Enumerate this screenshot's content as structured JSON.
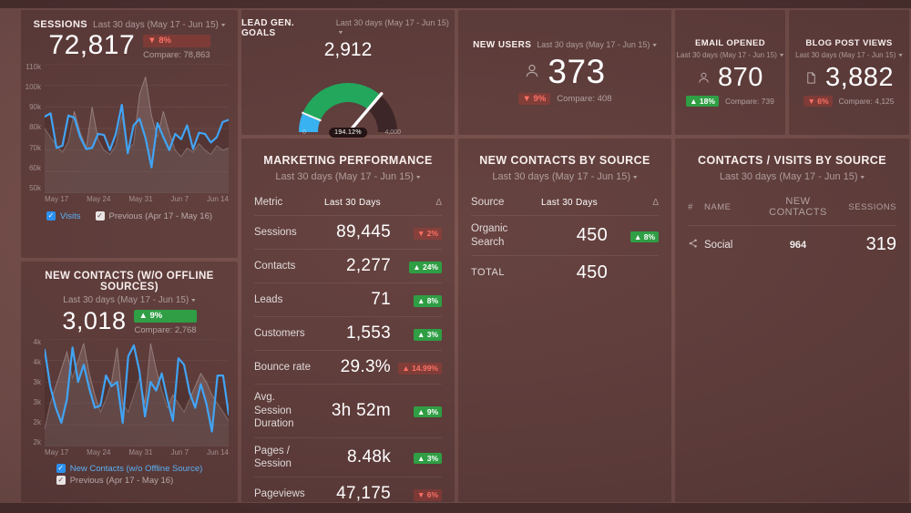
{
  "colors": {
    "accent_blue": "#41a4f5",
    "green": "#2f9e44",
    "red": "#ff7166",
    "gauge_blue": "#38b2f0",
    "gauge_green": "#22a75d",
    "gauge_dark": "#3c2628"
  },
  "panels": {
    "sessions": {
      "title": "SESSIONS",
      "subtitle": "Last 30 days (May 17 - Jun 15)",
      "value": "72,817",
      "delta_text": "▼ 8%",
      "tone": "red",
      "compare": "Compare: 78,863",
      "legend": [
        {
          "label": "Visits"
        },
        {
          "label": "Previous (Apr 17 - May 16)"
        }
      ],
      "chart_data": {
        "type": "line",
        "ymin": 50000,
        "ymax": 110000,
        "yticks": [
          "110k",
          "100k",
          "90k",
          "80k",
          "70k",
          "60k",
          "50k"
        ],
        "xticks": [
          "May 17",
          "May 24",
          "May 31",
          "Jun 7",
          "Jun 14"
        ],
        "series": [
          {
            "name": "Previous (Apr 17 - May 16)",
            "color": "#b9b3b3",
            "area": true,
            "values": [
              80000,
              76000,
              72000,
              69000,
              74000,
              88000,
              78000,
              71000,
              90000,
              75000,
              70000,
              68000,
              72000,
              86000,
              70000,
              73000,
              96000,
              104000,
              86000,
              76000,
              88000,
              78000,
              70000,
              67000,
              71000,
              69000,
              73000,
              70000,
              68000,
              72000,
              70000,
              71000
            ]
          },
          {
            "name": "Visits",
            "color": "#41a4f5",
            "values": [
              85500,
              87000,
              71000,
              72000,
              86000,
              85000,
              76000,
              70500,
              71000,
              77500,
              77000,
              70000,
              77500,
              91000,
              68500,
              81500,
              84500,
              75500,
              62000,
              82500,
              76000,
              70000,
              77500,
              75000,
              81500,
              70500,
              78000,
              77500,
              73500,
              76000,
              83000,
              84000
            ]
          }
        ]
      }
    },
    "lead_gen": {
      "title": "LEAD GEN. GOALS",
      "subtitle": "Last 30 days (May 17 - Jun 15)",
      "value": "2,912",
      "chart_data": {
        "type": "gauge",
        "value": 2912,
        "percent_label": "194.12%",
        "min_label": "0",
        "max_label": "4,000",
        "needle_frac": 0.728,
        "segments": [
          {
            "color": "#38b2f0",
            "from": 0,
            "to": 0.128
          },
          {
            "color": "#22a75d",
            "from": 0.128,
            "to": 0.728
          },
          {
            "color": "#3c2628",
            "from": 0.728,
            "to": 1
          }
        ]
      }
    },
    "new_users": {
      "title": "NEW USERS",
      "subtitle": "Last 30 days (May 17 - Jun 15)",
      "icon": "person",
      "value": "373",
      "delta_text": "▼ 9%",
      "tone": "red",
      "compare": "Compare: 408"
    },
    "email_opened": {
      "title": "EMAIL OPENED",
      "subtitle": "Last 30 days (May 17 - Jun 15)",
      "icon": "person",
      "value": "870",
      "delta_text": "▲ 18%",
      "tone": "green",
      "compare": "Compare: 739"
    },
    "blog_views": {
      "title": "BLOG POST VIEWS",
      "subtitle": "Last 30 days (May 17 - Jun 15)",
      "icon": "document",
      "value": "3,882",
      "delta_text": "▼ 6%",
      "tone": "red",
      "compare": "Compare: 4,125"
    },
    "marketing": {
      "title": "MARKETING PERFORMANCE",
      "subtitle": "Last 30 days (May 17 - Jun 15)",
      "columns": [
        "Metric",
        "Last 30 Days",
        "Δ"
      ],
      "rows": [
        {
          "metric": "Sessions",
          "value": "89,445",
          "delta_text": "▼ 2%",
          "tone": "red"
        },
        {
          "metric": "Contacts",
          "value": "2,277",
          "delta_text": "▲ 24%",
          "tone": "green"
        },
        {
          "metric": "Leads",
          "value": "71",
          "delta_text": "▲ 8%",
          "tone": "green"
        },
        {
          "metric": "Customers",
          "value": "1,553",
          "delta_text": "▲ 3%",
          "tone": "green"
        },
        {
          "metric": "Bounce rate",
          "value": "29.3%",
          "delta_text": "▲ 14.99%",
          "tone": "red"
        },
        {
          "metric": "Avg. Session Duration",
          "value": "3h 52m",
          "delta_text": "▲ 9%",
          "tone": "green"
        },
        {
          "metric": "Pages / Session",
          "value": "8.48k",
          "delta_text": "▲ 3%",
          "tone": "green"
        },
        {
          "metric": "Pageviews",
          "value": "47,175",
          "delta_text": "▼ 6%",
          "tone": "red"
        }
      ]
    },
    "contacts_by_source": {
      "title": "NEW CONTACTS BY SOURCE",
      "subtitle": "Last 30 days (May 17 - Jun 15)",
      "columns": [
        "Source",
        "Last 30 Days",
        "Δ"
      ],
      "rows": [
        {
          "source": "Organic Search",
          "value": "450",
          "delta_text": "▲ 8%",
          "tone": "green"
        }
      ],
      "total_label": "TOTAL",
      "total_value": "450"
    },
    "contacts_visits": {
      "title": "CONTACTS / VISITS BY SOURCE",
      "subtitle": "Last 30 days (May 17 - Jun 15)",
      "columns": [
        "#",
        "NAME",
        "NEW CONTACTS",
        "SESSIONS"
      ],
      "rows": [
        {
          "name": "Social",
          "icon": "social",
          "new_contacts": "964",
          "sessions": "319"
        }
      ]
    },
    "new_contacts": {
      "title": "NEW CONTACTS (W/O OFFLINE SOURCES)",
      "subtitle": "Last 30 days (May 17 - Jun 15)",
      "value": "3,018",
      "delta_text": "▲ 9%",
      "tone": "green",
      "compare": "Compare: 2,768",
      "legend": [
        {
          "label": "New Contacts (w/o Offline Source)"
        },
        {
          "label": "Previous (Apr 17 - May 16)"
        }
      ],
      "chart_data": {
        "type": "line",
        "ymin": 2000,
        "ymax": 4500,
        "yticks": [
          "4k",
          "4k",
          "3k",
          "3k",
          "2k",
          "2k"
        ],
        "xticks": [
          "May 17",
          "May 24",
          "May 31",
          "Jun 7",
          "Jun 14"
        ],
        "series": [
          {
            "name": "Previous (Apr 17 - May 16)",
            "color": "#b9b3b3",
            "area": true,
            "values": [
              2400,
              3000,
              3400,
              3800,
              4200,
              3600,
              4000,
              4400,
              3700,
              3200,
              2800,
              3100,
              3500,
              4300,
              3000,
              2800,
              3200,
              3600,
              3000,
              4400,
              3800,
              3300,
              2900,
              3200,
              3000,
              2800,
              3100,
              3400,
              3700,
              3500,
              3200,
              3000,
              2800,
              2600
            ]
          },
          {
            "name": "New Contacts (w/o Offline Source)",
            "color": "#41a4f5",
            "values": [
              4250,
              3400,
              2900,
              2550,
              3100,
              4300,
              3500,
              3900,
              3350,
              2900,
              2950,
              3650,
              3400,
              3500,
              2550,
              4100,
              4350,
              3750,
              2700,
              3500,
              3300,
              3700,
              3100,
              2600,
              4050,
              3900,
              3250,
              2900,
              3450,
              3000,
              2350,
              3650,
              3650,
              2750
            ]
          }
        ]
      }
    }
  }
}
